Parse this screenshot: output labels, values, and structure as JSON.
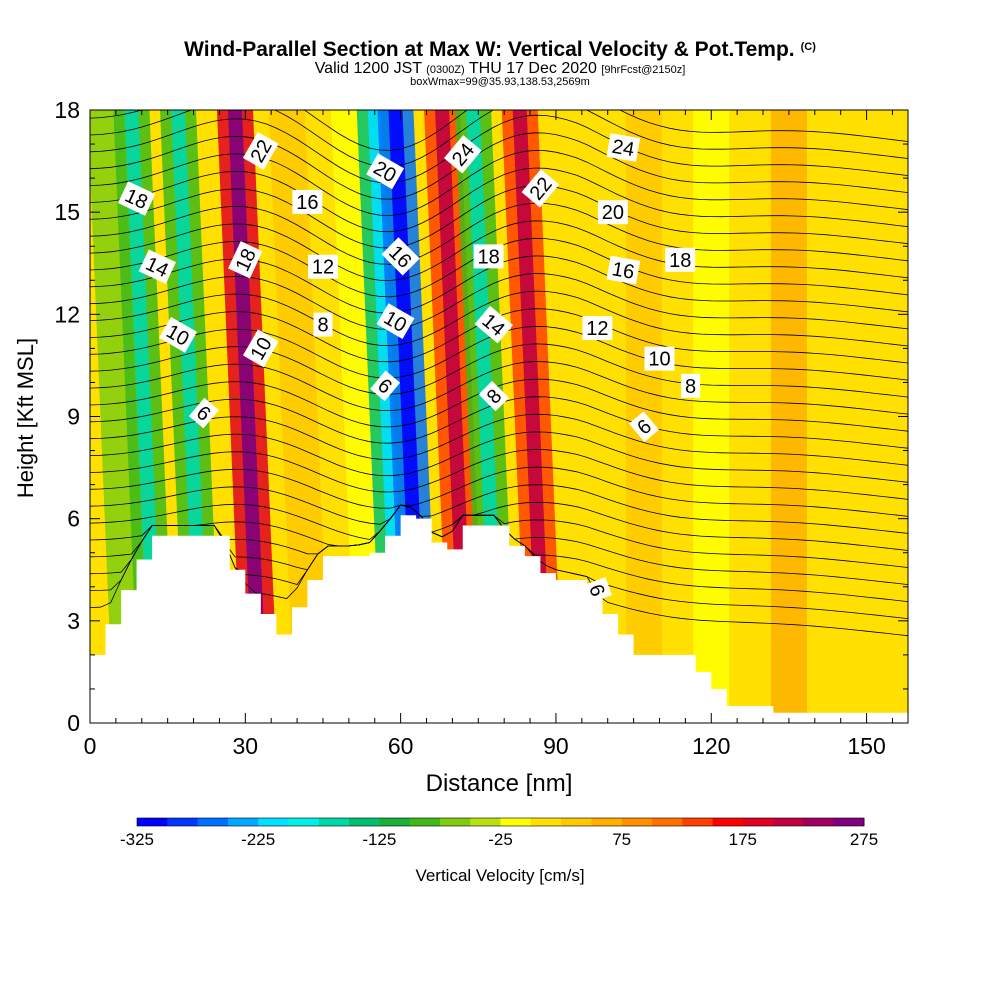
{
  "title": {
    "main": "Wind-Parallel Section at Max W: Vertical Velocity & Pot.Temp.",
    "mark": "(C)",
    "valid_prefix": "Valid 1200 JST",
    "valid_utc": "(0300Z)",
    "valid_date": "THU 17 Dec 2020",
    "forecast": "[9hrFcst@2150z]",
    "box_info": "boxWmax=99@35.93,138.53,2569m"
  },
  "chart_data": {
    "type": "heatmap",
    "xlabel": "Distance [nm]",
    "ylabel": "Height [Kft MSL]",
    "xlim": [
      0,
      158
    ],
    "ylim": [
      0,
      18
    ],
    "xticks": [
      0,
      30,
      60,
      90,
      120,
      150
    ],
    "yticks": [
      0,
      3,
      6,
      9,
      12,
      15,
      18
    ],
    "colorbar": {
      "label": "Vertical Velocity [cm/s]",
      "min": -325,
      "max": 275,
      "ticks": [
        -325,
        -225,
        -125,
        -25,
        75,
        175,
        275
      ],
      "colors": [
        "#0000ff",
        "#0038ff",
        "#0070ff",
        "#00a8ff",
        "#00e0ff",
        "#00f0e8",
        "#00d8a8",
        "#00c070",
        "#18b038",
        "#40b818",
        "#80cc10",
        "#b8e010",
        "#ffff00",
        "#ffe000",
        "#ffc800",
        "#ffb000",
        "#ff9000",
        "#ff7000",
        "#ff4000",
        "#ff0000",
        "#e00020",
        "#c00040",
        "#a00060",
        "#800080"
      ]
    },
    "velocity_bands": [
      {
        "x": 8,
        "velocity": -75
      },
      {
        "x": 13,
        "velocity": -100
      },
      {
        "x": 22,
        "velocity": -100
      },
      {
        "x": 33,
        "velocity": 175
      },
      {
        "x": 43,
        "velocity": 25
      },
      {
        "x": 55,
        "velocity": -25
      },
      {
        "x": 60,
        "velocity": -150
      },
      {
        "x": 64,
        "velocity": -275
      },
      {
        "x": 73,
        "velocity": 125
      },
      {
        "x": 79,
        "velocity": -100
      },
      {
        "x": 88,
        "velocity": 125
      },
      {
        "x": 107,
        "velocity": 25
      },
      {
        "x": 120,
        "velocity": -25
      },
      {
        "x": 135,
        "velocity": 50
      }
    ],
    "terrain": [
      {
        "x": 0,
        "h": 2.0
      },
      {
        "x": 3,
        "h": 2.9
      },
      {
        "x": 6,
        "h": 3.9
      },
      {
        "x": 9,
        "h": 4.8
      },
      {
        "x": 12,
        "h": 5.5
      },
      {
        "x": 16,
        "h": 5.5
      },
      {
        "x": 22,
        "h": 5.5
      },
      {
        "x": 25,
        "h": 5.5
      },
      {
        "x": 27,
        "h": 4.5
      },
      {
        "x": 30,
        "h": 3.8
      },
      {
        "x": 33,
        "h": 3.2
      },
      {
        "x": 36,
        "h": 2.6
      },
      {
        "x": 39,
        "h": 3.4
      },
      {
        "x": 42,
        "h": 4.2
      },
      {
        "x": 45,
        "h": 4.9
      },
      {
        "x": 51,
        "h": 4.9
      },
      {
        "x": 54,
        "h": 5.0
      },
      {
        "x": 57,
        "h": 5.5
      },
      {
        "x": 60,
        "h": 6.1
      },
      {
        "x": 63,
        "h": 6.0
      },
      {
        "x": 66,
        "h": 5.3
      },
      {
        "x": 69,
        "h": 5.1
      },
      {
        "x": 72,
        "h": 5.8
      },
      {
        "x": 78,
        "h": 5.8
      },
      {
        "x": 81,
        "h": 5.2
      },
      {
        "x": 84,
        "h": 4.9
      },
      {
        "x": 87,
        "h": 4.4
      },
      {
        "x": 90,
        "h": 4.2
      },
      {
        "x": 96,
        "h": 4.0
      },
      {
        "x": 99,
        "h": 3.2
      },
      {
        "x": 102,
        "h": 2.6
      },
      {
        "x": 105,
        "h": 2.0
      },
      {
        "x": 111,
        "h": 2.0
      },
      {
        "x": 117,
        "h": 1.5
      },
      {
        "x": 120,
        "h": 1.0
      },
      {
        "x": 123,
        "h": 0.5
      },
      {
        "x": 132,
        "h": 0.3
      },
      {
        "x": 150,
        "h": 0.3
      },
      {
        "x": 158,
        "h": 0.5
      }
    ],
    "isentrope_labels": [
      {
        "text": "18",
        "x": 9,
        "y": 15.4,
        "angle": 25
      },
      {
        "text": "14",
        "x": 13,
        "y": 13.4,
        "angle": 25
      },
      {
        "text": "10",
        "x": 17,
        "y": 11.4,
        "angle": 30
      },
      {
        "text": "6",
        "x": 22,
        "y": 9.1,
        "angle": 40
      },
      {
        "text": "22",
        "x": 33,
        "y": 16.8,
        "angle": -60
      },
      {
        "text": "18",
        "x": 30,
        "y": 13.6,
        "angle": -65
      },
      {
        "text": "10",
        "x": 33,
        "y": 11.0,
        "angle": -60
      },
      {
        "text": "16",
        "x": 42,
        "y": 15.3,
        "angle": 0
      },
      {
        "text": "12",
        "x": 45,
        "y": 13.4,
        "angle": 0
      },
      {
        "text": "8",
        "x": 45,
        "y": 11.7,
        "angle": 0
      },
      {
        "text": "20",
        "x": 57,
        "y": 16.2,
        "angle": 30
      },
      {
        "text": "16",
        "x": 60,
        "y": 13.7,
        "angle": 45
      },
      {
        "text": "10",
        "x": 59,
        "y": 11.8,
        "angle": 30
      },
      {
        "text": "6",
        "x": 57,
        "y": 9.9,
        "angle": 40
      },
      {
        "text": "24",
        "x": 72,
        "y": 16.7,
        "angle": -50
      },
      {
        "text": "18",
        "x": 77,
        "y": 13.7,
        "angle": 0
      },
      {
        "text": "14",
        "x": 78,
        "y": 11.7,
        "angle": 40
      },
      {
        "text": "8",
        "x": 78,
        "y": 9.6,
        "angle": -45
      },
      {
        "text": "22",
        "x": 87,
        "y": 15.7,
        "angle": -50
      },
      {
        "text": "24",
        "x": 103,
        "y": 16.9,
        "angle": 10
      },
      {
        "text": "20",
        "x": 101,
        "y": 15.0,
        "angle": 0
      },
      {
        "text": "16",
        "x": 103,
        "y": 13.3,
        "angle": 10
      },
      {
        "text": "18",
        "x": 114,
        "y": 13.6,
        "angle": 0
      },
      {
        "text": "12",
        "x": 98,
        "y": 11.6,
        "angle": 0
      },
      {
        "text": "10",
        "x": 110,
        "y": 10.7,
        "angle": 0
      },
      {
        "text": "8",
        "x": 116,
        "y": 9.9,
        "angle": 0
      },
      {
        "text": "6",
        "x": 107,
        "y": 8.7,
        "angle": -40
      },
      {
        "text": "6",
        "x": 98,
        "y": 3.9,
        "angle": 70
      }
    ]
  }
}
